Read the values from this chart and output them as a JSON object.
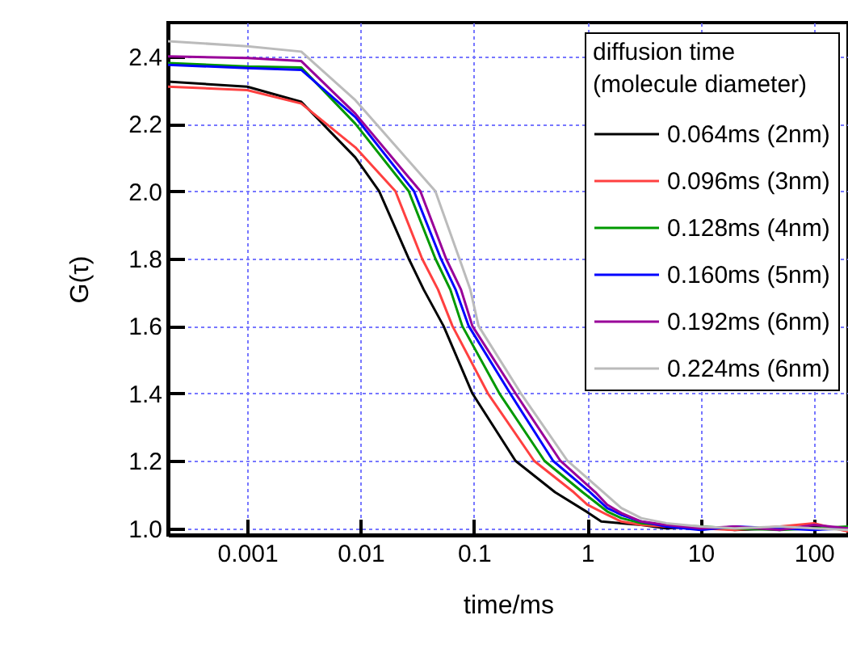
{
  "chart_data": {
    "type": "line",
    "xlabel": "time/ms",
    "ylabel": "G(τ)",
    "legend_title": "diffusion time\n(molecule diameter)",
    "log": "x",
    "grid": true,
    "legend": "top right",
    "xlim": [
      0.0002,
      200
    ],
    "xticks": [
      0.001,
      0.01,
      0.1,
      1,
      10,
      100
    ],
    "ylim": [
      0.98,
      2.5
    ],
    "yticks": [
      {
        "value": 1,
        "label": "1.0"
      },
      {
        "value": 1.2,
        "label": "1.2"
      },
      {
        "value": 1.4,
        "label": "1.4"
      },
      {
        "value": 1.6,
        "label": "1.6"
      },
      {
        "value": 1.8,
        "label": "1.8"
      },
      {
        "value": 2,
        "label": "2.0"
      },
      {
        "value": 2.2,
        "label": "2.2"
      },
      {
        "value": 2.4,
        "label": "2.4"
      }
    ],
    "series": [
      {
        "name": "0.064ms (2nm)",
        "color": "#000000",
        "x": [
          0.0002,
          0.001,
          0.003,
          0.009,
          0.0146,
          0.0266,
          0.0361,
          0.054,
          0.097,
          0.233,
          0.52,
          1,
          1.33,
          2,
          3,
          5,
          10,
          20,
          50,
          100,
          200
        ],
        "values": [
          2.325,
          2.31,
          2.265,
          2.1,
          2.0,
          1.8,
          1.708,
          1.6,
          1.4,
          1.2,
          1.107,
          1.048,
          1.02,
          1.015,
          1.01,
          1.0,
          1.005,
          0.995,
          1.0,
          1.005,
          1.0
        ]
      },
      {
        "name": "0.096ms (3nm)",
        "color": "#ff4040",
        "x": [
          0.0002,
          0.001,
          0.003,
          0.009,
          0.0203,
          0.0349,
          0.0483,
          0.0647,
          0.133,
          0.34,
          0.76,
          1,
          1.5,
          2,
          3,
          5,
          10,
          20,
          50,
          100,
          200
        ],
        "values": [
          2.31,
          2.3,
          2.26,
          2.13,
          2.0,
          1.8,
          1.708,
          1.6,
          1.4,
          1.2,
          1.107,
          1.07,
          1.04,
          1.02,
          1.01,
          1.005,
          1.0,
          0.995,
          1.005,
          1.015,
          0.99
        ]
      },
      {
        "name": "0.128ms (4nm)",
        "color": "#009900",
        "x": [
          0.0002,
          0.001,
          0.003,
          0.009,
          0.0266,
          0.0457,
          0.062,
          0.079,
          0.168,
          0.42,
          0.91,
          1.5,
          2,
          3,
          5,
          10,
          20,
          50,
          100,
          200
        ],
        "values": [
          2.38,
          2.37,
          2.367,
          2.2,
          2.0,
          1.8,
          1.708,
          1.6,
          1.4,
          1.2,
          1.107,
          1.05,
          1.03,
          1.015,
          1.01,
          1.005,
          1.0,
          0.995,
          1.0,
          1.005
        ]
      },
      {
        "name": "0.160ms (5nm)",
        "color": "#0000ff",
        "x": [
          0.0002,
          0.001,
          0.003,
          0.009,
          0.0296,
          0.0511,
          0.069,
          0.09,
          0.209,
          0.5,
          1.06,
          1.5,
          2,
          3,
          5,
          10,
          20,
          50,
          100,
          200
        ],
        "values": [
          2.375,
          2.365,
          2.36,
          2.22,
          2.0,
          1.8,
          1.708,
          1.6,
          1.4,
          1.2,
          1.107,
          1.06,
          1.04,
          1.02,
          1.005,
          0.995,
          1.005,
          1.0,
          0.995,
          1.0
        ]
      },
      {
        "name": "0.192ms (6nm)",
        "color": "#990099",
        "x": [
          0.0002,
          0.001,
          0.003,
          0.009,
          0.0337,
          0.0568,
          0.077,
          0.097,
          0.233,
          0.58,
          1.18,
          1.5,
          2,
          3,
          5,
          10,
          20,
          50,
          100,
          200
        ],
        "values": [
          2.4,
          2.395,
          2.386,
          2.23,
          2.0,
          1.8,
          1.708,
          1.6,
          1.4,
          1.2,
          1.107,
          1.07,
          1.045,
          1.02,
          1.01,
          1.0,
          1.005,
          0.995,
          1.01,
          1.0
        ]
      },
      {
        "name": "0.224ms (6nm)",
        "color": "#bbbbbb",
        "x": [
          0.0002,
          0.001,
          0.003,
          0.009,
          0.0457,
          0.0745,
          0.093,
          0.11,
          0.26,
          0.67,
          1.39,
          2,
          3,
          5,
          10,
          20,
          50,
          100,
          200
        ],
        "values": [
          2.445,
          2.43,
          2.414,
          2.27,
          2.0,
          1.8,
          1.708,
          1.6,
          1.4,
          1.2,
          1.107,
          1.06,
          1.03,
          1.015,
          1.005,
          1.0,
          1.005,
          1.0,
          0.995
        ]
      }
    ]
  }
}
